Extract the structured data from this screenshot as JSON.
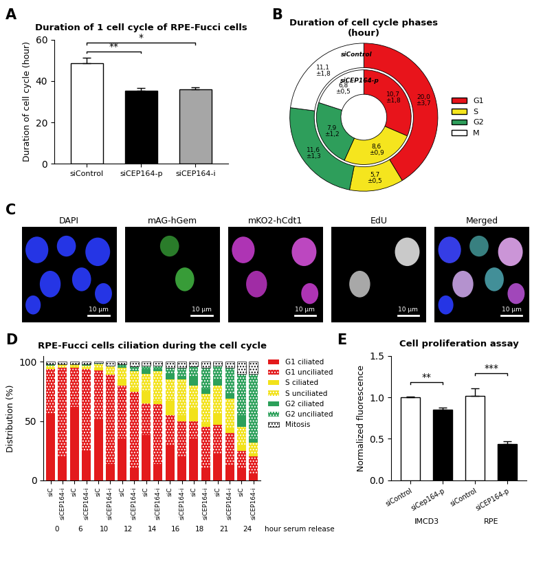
{
  "chart_data": [
    {
      "panel": "A",
      "type": "bar",
      "title": "Duration of 1 cell cycle of RPE-Fucci cells",
      "y_label": "Duration of cell cycle (hour)",
      "categories": [
        "siControl",
        "siCEP164-p",
        "siCEP164-i"
      ],
      "values": [
        48.5,
        35.3,
        35.8
      ],
      "errors": [
        2.8,
        1.4,
        1.2
      ],
      "colors": [
        "#ffffff",
        "#000000",
        "#a6a6a6"
      ],
      "ylim": [
        0,
        60
      ],
      "yticks": [
        0,
        20,
        40,
        60
      ],
      "annotations": [
        {
          "text": "**",
          "between": [
            0,
            1
          ]
        },
        {
          "text": "*",
          "between": [
            0,
            2
          ]
        }
      ]
    },
    {
      "panel": "B",
      "type": "donut",
      "title": "Duration of cell cycle phases\n(hour)",
      "categories": [
        "G1",
        "S",
        "G2",
        "M"
      ],
      "colors": [
        "#e8141b",
        "#f5e51e",
        "#2e9e5b",
        "#ffffff"
      ],
      "legend": "right",
      "data_labels": true,
      "series": [
        {
          "name": "siControl",
          "values": [
            20.0,
            5.7,
            11.6,
            11.1
          ],
          "errors": [
            3.7,
            0.5,
            1.3,
            1.8
          ],
          "value_labels": [
            "20,0\n±3,7",
            "5,7\n±0,5",
            "11,6\n±1,3",
            "11,1\n±1,8"
          ]
        },
        {
          "name": "siCEP164-p",
          "values": [
            10.7,
            8.6,
            7.9,
            6.8
          ],
          "errors": [
            1.8,
            0.9,
            1.2,
            0.5
          ],
          "value_labels": [
            "10,7\n±1,8",
            "8,6\n±0,9",
            "7,9\n±1,2",
            "6,8\n±0,5"
          ]
        }
      ]
    },
    {
      "panel": "C",
      "type": "image",
      "titles": [
        "DAPI",
        "mAG-hGem",
        "mKO2-hCdt1",
        "EdU",
        "Merged"
      ],
      "scale_bar": "10 μm"
    },
    {
      "panel": "D",
      "type": "bar",
      "stacked": true,
      "legend": "right",
      "title": "RPE-Fucci cells ciliation during the cell cycle",
      "y_label": "Distribution (%)",
      "categories": [
        "siC",
        "siCEP164-i",
        "siC",
        "siCEP164-i",
        "siC",
        "siCEP164-i",
        "siC",
        "siCEP164-i",
        "siC",
        "siCEP164-i",
        "siC",
        "siCEP164-i",
        "siC",
        "siCEP164-i",
        "siC",
        "siCEP164-i",
        "siC",
        "siCEP164-i"
      ],
      "group_labels": [
        0,
        6,
        10,
        12,
        14,
        16,
        18,
        21,
        24
      ],
      "group_title": "hour serum release",
      "ylim": [
        0,
        105
      ],
      "yticks": [
        0,
        50,
        100
      ],
      "series": [
        {
          "name": "G1 ciliated",
          "color": "#e31a1c",
          "line_style": "solid",
          "values": [
            57,
            20,
            62,
            24,
            51,
            14,
            35,
            10,
            38,
            14,
            30,
            20,
            35,
            10,
            22,
            12,
            10,
            5
          ]
        },
        {
          "name": "G1 unciliated",
          "color": "#e31a1c",
          "line_style": "dotted",
          "values": [
            37,
            75,
            33,
            70,
            42,
            75,
            45,
            65,
            27,
            50,
            25,
            30,
            15,
            35,
            25,
            28,
            15,
            15
          ]
        },
        {
          "name": "S ciliated",
          "color": "#f2e21b",
          "line_style": "solid",
          "values": [
            1,
            0,
            1,
            0,
            2,
            1,
            5,
            2,
            10,
            3,
            12,
            5,
            10,
            3,
            10,
            4,
            5,
            2
          ]
        },
        {
          "name": "S unciliated",
          "color": "#f2e21b",
          "line_style": "dotted",
          "values": [
            2,
            3,
            2,
            3,
            3,
            6,
            10,
            15,
            15,
            25,
            18,
            30,
            20,
            25,
            23,
            25,
            15,
            10
          ]
        },
        {
          "name": "G2 ciliated",
          "color": "#2ca05a",
          "line_style": "solid",
          "values": [
            0,
            0,
            0,
            0,
            0,
            0,
            1,
            1,
            4,
            2,
            5,
            3,
            8,
            4,
            5,
            4,
            10,
            3
          ]
        },
        {
          "name": "G2 unciliated",
          "color": "#2ca05a",
          "line_style": "dotted",
          "values": [
            1,
            0,
            0,
            1,
            1,
            1,
            2,
            3,
            3,
            3,
            5,
            7,
            8,
            18,
            12,
            22,
            35,
            55
          ]
        },
        {
          "name": "Mitosis",
          "color": "#ffffff",
          "line_style": "dotted",
          "values": [
            2,
            2,
            2,
            2,
            1,
            3,
            2,
            4,
            3,
            3,
            5,
            5,
            4,
            5,
            3,
            5,
            10,
            10
          ]
        }
      ]
    },
    {
      "panel": "E",
      "type": "bar",
      "title": "Cell proliferation assay",
      "y_label": "Normalized fluorescence",
      "categories": [
        "siControl",
        "siCep164-p",
        "siControl",
        "siCEP164-p"
      ],
      "group_labels": [
        "IMCD3",
        "RPE"
      ],
      "values": [
        1.0,
        0.85,
        1.02,
        0.44
      ],
      "errors": [
        0.01,
        0.03,
        0.09,
        0.03
      ],
      "colors": [
        "#ffffff",
        "#000000",
        "#ffffff",
        "#000000"
      ],
      "ylim": [
        0,
        1.5
      ],
      "yticks": [
        {
          "value": 0,
          "label": "0.0"
        },
        0.5,
        {
          "value": 1,
          "label": "1.0"
        },
        1.5
      ],
      "annotations": [
        {
          "text": "**",
          "between": [
            0,
            1
          ]
        },
        {
          "text": "***",
          "between": [
            2,
            3
          ]
        }
      ]
    }
  ]
}
